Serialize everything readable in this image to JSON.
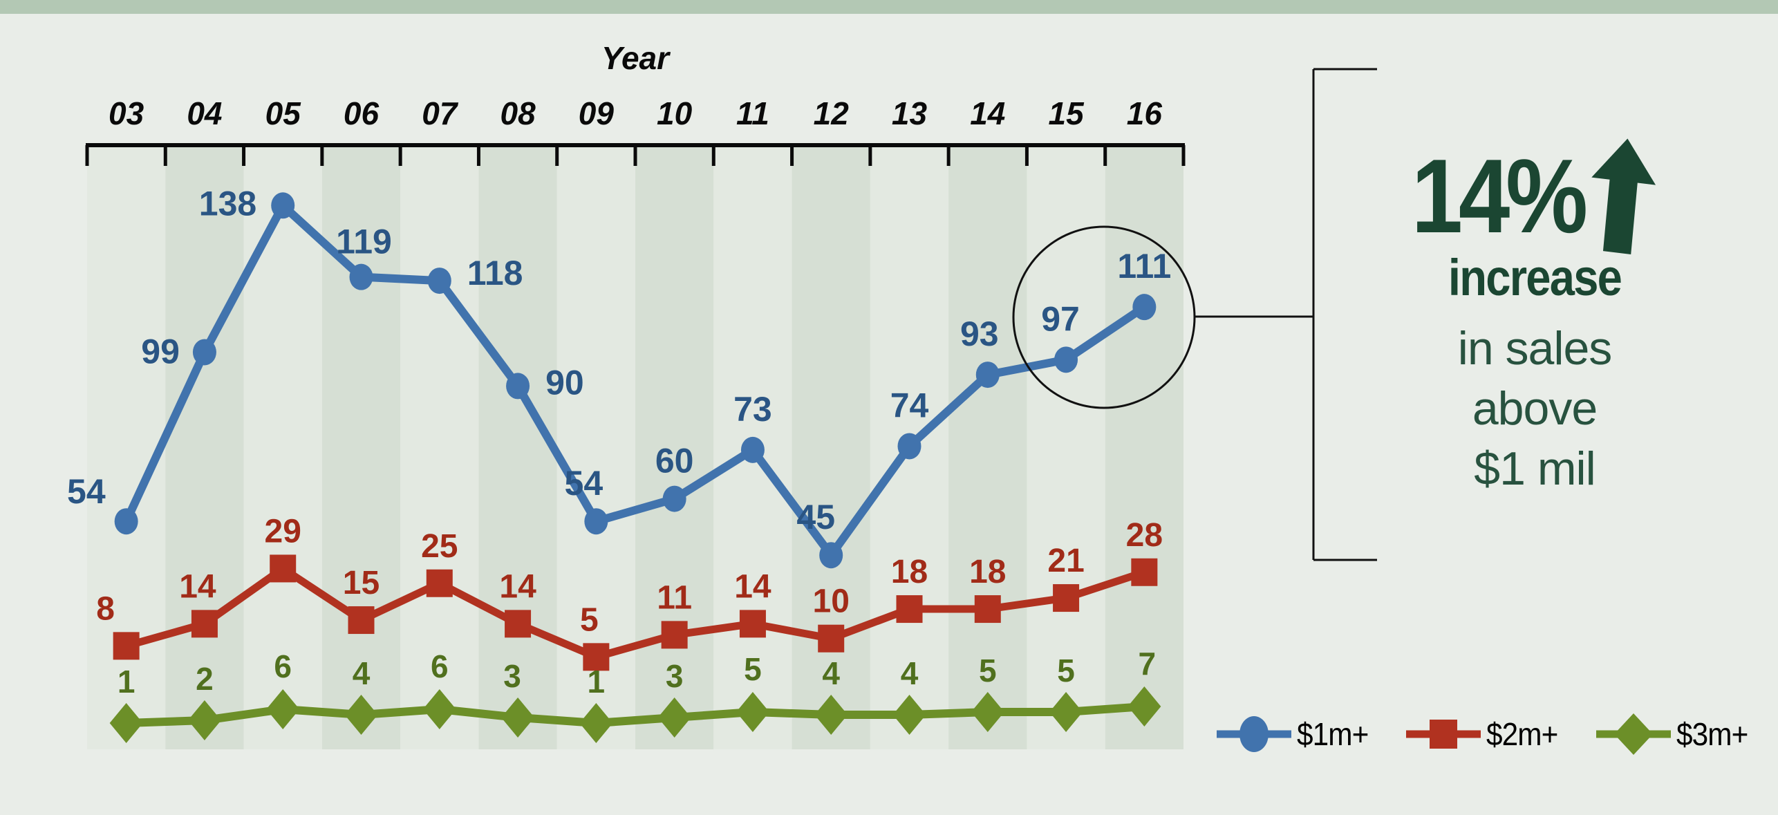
{
  "axis": {
    "title": "Year"
  },
  "chart_data": {
    "type": "line",
    "title": "Year",
    "categories": [
      "03",
      "04",
      "05",
      "06",
      "07",
      "08",
      "09",
      "10",
      "11",
      "12",
      "13",
      "14",
      "15",
      "16"
    ],
    "series": [
      {
        "name": "$1m+",
        "marker": "circle",
        "color": "#4173AD",
        "label_color": "#2A5584",
        "values": [
          54,
          99,
          138,
          119,
          118,
          90,
          54,
          60,
          73,
          45,
          74,
          93,
          97,
          111
        ]
      },
      {
        "name": "$2m+",
        "marker": "square",
        "color": "#B13220",
        "label_color": "#A12B18",
        "values": [
          8,
          14,
          29,
          15,
          25,
          14,
          5,
          11,
          14,
          10,
          18,
          18,
          21,
          28
        ]
      },
      {
        "name": "$3m+",
        "marker": "diamond",
        "color": "#6C8F28",
        "label_color": "#50701E",
        "values": [
          1,
          2,
          6,
          4,
          6,
          3,
          1,
          3,
          5,
          4,
          4,
          5,
          5,
          7
        ]
      }
    ],
    "legend_position": "bottom-right",
    "background_style": "alternating-year-column-stripes",
    "annotation": {
      "circled_categories": [
        "15",
        "16"
      ],
      "circled_values": [
        97,
        111
      ]
    }
  },
  "callout": {
    "headline": "14%",
    "arrow_icon": "up-arrow",
    "subheadline": "increase",
    "lines": [
      "in sales",
      "above",
      "$1 mil"
    ]
  },
  "legend": {
    "items": [
      {
        "label": "$1m+",
        "marker": "circle",
        "color": "#4173AD"
      },
      {
        "label": "$2m+",
        "marker": "square",
        "color": "#B13220"
      },
      {
        "label": "$3m+",
        "marker": "diamond",
        "color": "#6C8F28"
      }
    ]
  },
  "colors": {
    "background": "#E9EDE8",
    "top_bar": "#B3C8B4",
    "stripe_light": "#E3E9E1",
    "stripe_dark": "#D6DFD4",
    "axis_black": "#0A0A0A",
    "annotation_black": "#111111",
    "headline_green": "#1B4632",
    "body_green": "#28523F",
    "legend_text": "#000000"
  }
}
